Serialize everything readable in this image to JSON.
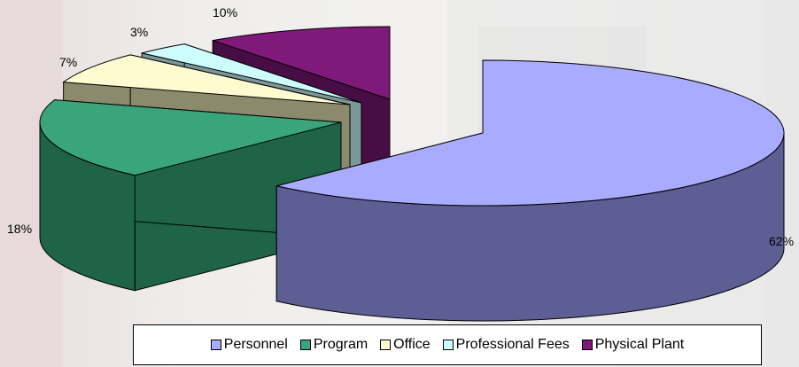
{
  "chart_data": {
    "type": "pie",
    "style": "3d-exploded",
    "title": "",
    "slices": [
      {
        "label": "Personnel",
        "value": 62,
        "pct_label": "62%",
        "color": "#a9abff",
        "side_color": "#5c5e94"
      },
      {
        "label": "Program",
        "value": 18,
        "pct_label": "18%",
        "color": "#3aa57a",
        "side_color": "#1f6446"
      },
      {
        "label": "Office",
        "value": 7,
        "pct_label": "7%",
        "color": "#fdfbcf",
        "side_color": "#8c8a6c"
      },
      {
        "label": "Professional Fees",
        "value": 3,
        "pct_label": "3%",
        "color": "#cdfdfd",
        "side_color": "#7b9898"
      },
      {
        "label": "Physical Plant",
        "value": 10,
        "pct_label": "10%",
        "color": "#7f1a7a",
        "side_color": "#490d46"
      }
    ],
    "legend_position": "bottom"
  }
}
